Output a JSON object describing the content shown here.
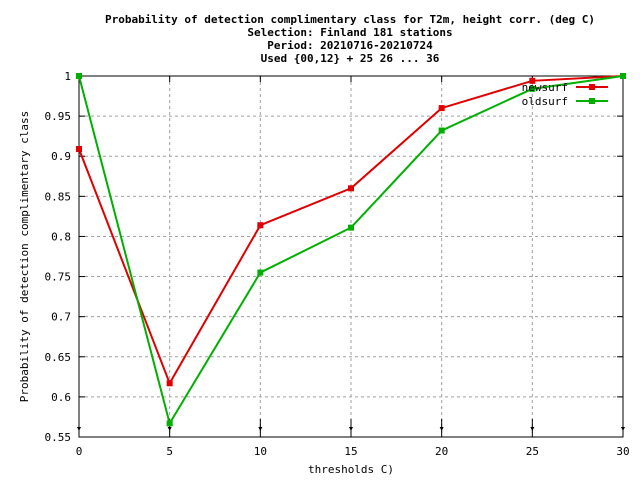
{
  "chart_data": {
    "type": "line",
    "title_lines": [
      "Probability of detection complimentary class  for T2m, height corr. (deg C)",
      "Selection: Finland    181 stations",
      "Period: 20210716-20210724",
      "Used {00,12} + 25 26 ... 36"
    ],
    "xlabel": "thresholds C)",
    "ylabel": "Probability of detection complimentary class",
    "xlim": [
      0,
      30
    ],
    "ylim": [
      0.55,
      1.0
    ],
    "x_ticks": [
      "0",
      "5",
      "10",
      "15",
      "20",
      "25",
      "30"
    ],
    "y_ticks": [
      "0.55",
      "0.6",
      "0.65",
      "0.7",
      "0.75",
      "0.8",
      "0.85",
      "0.9",
      "0.95",
      "1"
    ],
    "grid": true,
    "legend_position": "top-right",
    "x": [
      0,
      5,
      10,
      15,
      20,
      25,
      30
    ],
    "series": [
      {
        "name": "newsurf",
        "color": "#e00000",
        "values": [
          0.909,
          0.617,
          0.814,
          0.86,
          0.96,
          0.994,
          1.0
        ]
      },
      {
        "name": "oldsurf",
        "color": "#00b000",
        "values": [
          1.0,
          0.567,
          0.755,
          0.811,
          0.932,
          0.984,
          1.0
        ]
      }
    ]
  }
}
